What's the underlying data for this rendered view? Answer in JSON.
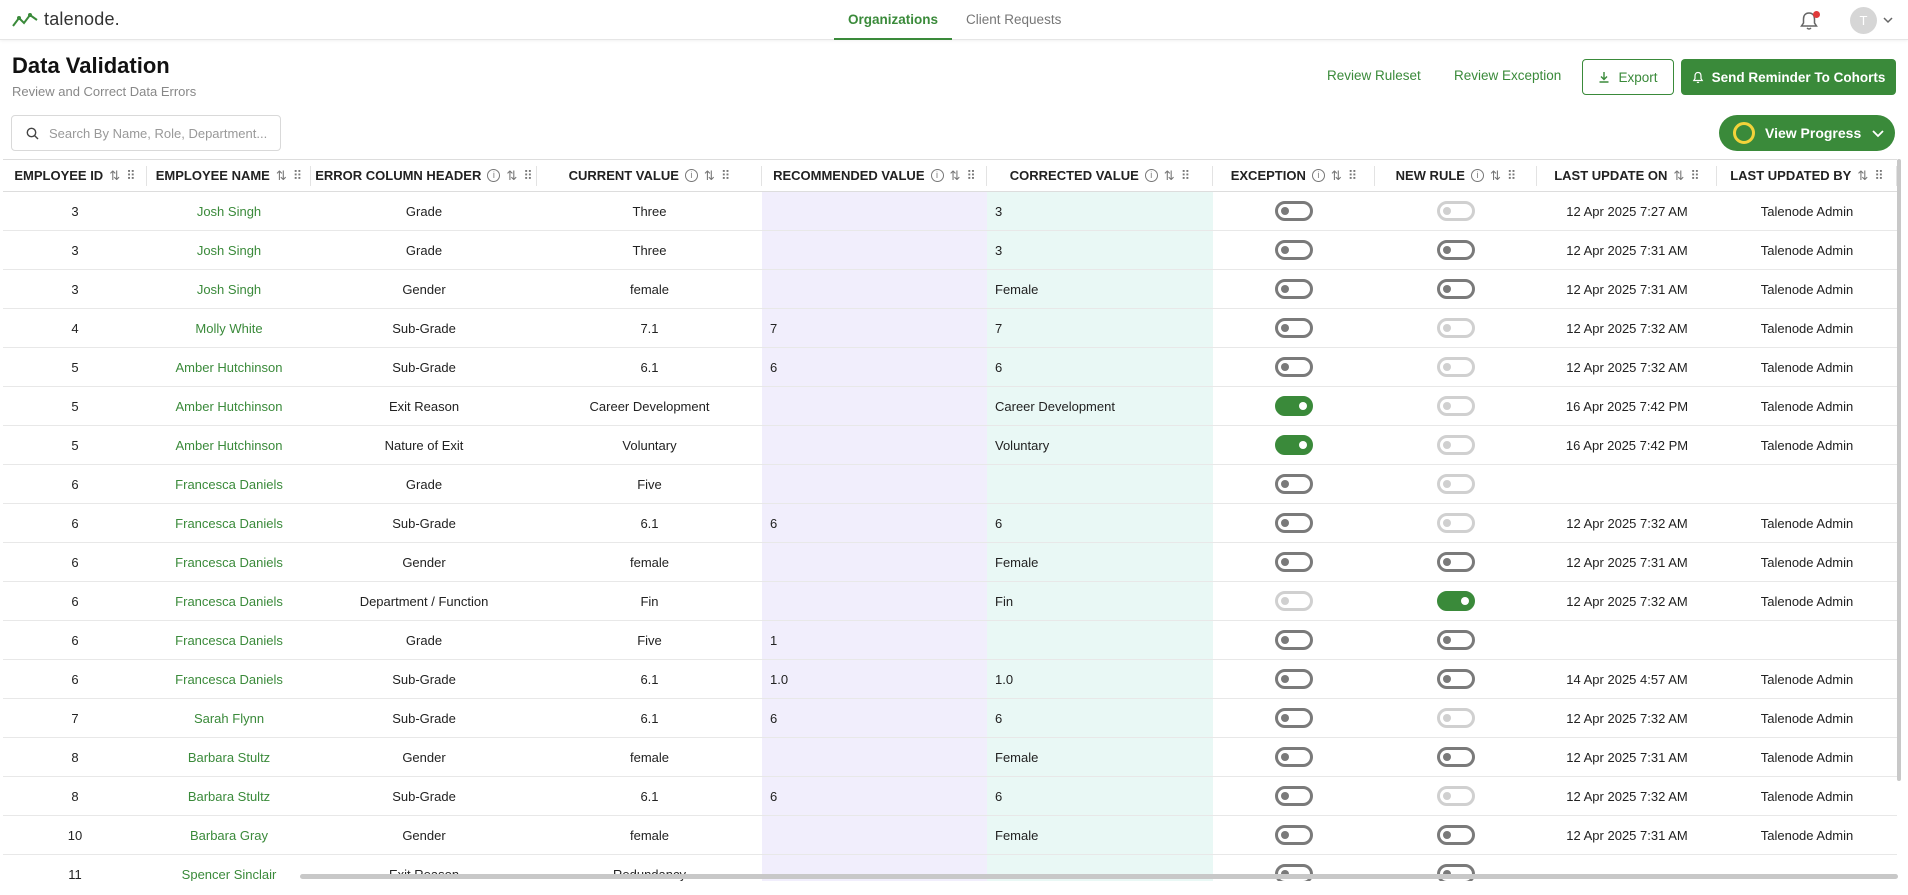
{
  "app": {
    "logo_text": "talenode."
  },
  "nav": {
    "tabs": [
      {
        "label": "Organizations",
        "active": true
      },
      {
        "label": "Client Requests",
        "active": false
      }
    ],
    "avatar_initial": "T"
  },
  "page": {
    "title": "Data Validation",
    "subtitle": "Review and Correct Data Errors"
  },
  "actions": {
    "review_ruleset": "Review Ruleset",
    "review_exception": "Review Exception",
    "export": "Export",
    "send_reminder": "Send Reminder To Cohorts",
    "view_progress": "View Progress"
  },
  "search": {
    "placeholder": "Search By Name, Role, Department..."
  },
  "colors": {
    "accent": "#3a8a3a",
    "recommended_bg": "#f1eefc",
    "corrected_bg": "#e9f8f5",
    "notification": "#e03a3a"
  },
  "table": {
    "columns": [
      {
        "label": "EMPLOYEE ID",
        "info": false
      },
      {
        "label": "EMPLOYEE NAME",
        "info": false
      },
      {
        "label": "ERROR COLUMN HEADER",
        "info": true
      },
      {
        "label": "CURRENT VALUE",
        "info": true
      },
      {
        "label": "RECOMMENDED VALUE",
        "info": true
      },
      {
        "label": "CORRECTED VALUE",
        "info": true
      },
      {
        "label": "EXCEPTION",
        "info": true
      },
      {
        "label": "NEW RULE",
        "info": true
      },
      {
        "label": "LAST UPDATE ON",
        "info": false
      },
      {
        "label": "LAST UPDATED BY",
        "info": false
      }
    ],
    "rows": [
      {
        "id": "3",
        "name": "Josh Singh",
        "header": "Grade",
        "current": "Three",
        "recommended": "",
        "corrected": "3",
        "exception": "off",
        "new_rule": "disabled",
        "updated_on": "12 Apr 2025 7:27 AM",
        "updated_by": "Talenode Admin"
      },
      {
        "id": "3",
        "name": "Josh Singh",
        "header": "Grade",
        "current": "Three",
        "recommended": "",
        "corrected": "3",
        "exception": "off",
        "new_rule": "off",
        "updated_on": "12 Apr 2025 7:31 AM",
        "updated_by": "Talenode Admin"
      },
      {
        "id": "3",
        "name": "Josh Singh",
        "header": "Gender",
        "current": "female",
        "recommended": "",
        "corrected": "Female",
        "exception": "off",
        "new_rule": "off",
        "updated_on": "12 Apr 2025 7:31 AM",
        "updated_by": "Talenode Admin"
      },
      {
        "id": "4",
        "name": "Molly White",
        "header": "Sub-Grade",
        "current": "7.1",
        "recommended": "7",
        "corrected": "7",
        "exception": "off",
        "new_rule": "disabled",
        "updated_on": "12 Apr 2025 7:32 AM",
        "updated_by": "Talenode Admin"
      },
      {
        "id": "5",
        "name": "Amber Hutchinson",
        "header": "Sub-Grade",
        "current": "6.1",
        "recommended": "6",
        "corrected": "6",
        "exception": "off",
        "new_rule": "disabled",
        "updated_on": "12 Apr 2025 7:32 AM",
        "updated_by": "Talenode Admin"
      },
      {
        "id": "5",
        "name": "Amber Hutchinson",
        "header": "Exit Reason",
        "current": "Career Development",
        "recommended": "",
        "corrected": "Career Development",
        "exception": "on",
        "new_rule": "disabled",
        "updated_on": "16 Apr 2025 7:42 PM",
        "updated_by": "Talenode Admin"
      },
      {
        "id": "5",
        "name": "Amber Hutchinson",
        "header": "Nature of Exit",
        "current": "Voluntary",
        "recommended": "",
        "corrected": "Voluntary",
        "exception": "on",
        "new_rule": "disabled",
        "updated_on": "16 Apr 2025 7:42 PM",
        "updated_by": "Talenode Admin"
      },
      {
        "id": "6",
        "name": "Francesca Daniels",
        "header": "Grade",
        "current": "Five",
        "recommended": "",
        "corrected": "",
        "exception": "off",
        "new_rule": "disabled",
        "updated_on": "",
        "updated_by": ""
      },
      {
        "id": "6",
        "name": "Francesca Daniels",
        "header": "Sub-Grade",
        "current": "6.1",
        "recommended": "6",
        "corrected": "6",
        "exception": "off",
        "new_rule": "disabled",
        "updated_on": "12 Apr 2025 7:32 AM",
        "updated_by": "Talenode Admin"
      },
      {
        "id": "6",
        "name": "Francesca Daniels",
        "header": "Gender",
        "current": "female",
        "recommended": "",
        "corrected": "Female",
        "exception": "off",
        "new_rule": "off",
        "updated_on": "12 Apr 2025 7:31 AM",
        "updated_by": "Talenode Admin"
      },
      {
        "id": "6",
        "name": "Francesca Daniels",
        "header": "Department / Function",
        "current": "Fin",
        "recommended": "",
        "corrected": "Fin",
        "exception": "disabled",
        "new_rule": "on",
        "updated_on": "12 Apr 2025 7:32 AM",
        "updated_by": "Talenode Admin"
      },
      {
        "id": "6",
        "name": "Francesca Daniels",
        "header": "Grade",
        "current": "Five",
        "recommended": "1",
        "corrected": "",
        "exception": "off",
        "new_rule": "off",
        "updated_on": "",
        "updated_by": ""
      },
      {
        "id": "6",
        "name": "Francesca Daniels",
        "header": "Sub-Grade",
        "current": "6.1",
        "recommended": "1.0",
        "corrected": "1.0",
        "exception": "off",
        "new_rule": "off",
        "updated_on": "14 Apr 2025 4:57 AM",
        "updated_by": "Talenode Admin"
      },
      {
        "id": "7",
        "name": "Sarah Flynn",
        "header": "Sub-Grade",
        "current": "6.1",
        "recommended": "6",
        "corrected": "6",
        "exception": "off",
        "new_rule": "disabled",
        "updated_on": "12 Apr 2025 7:32 AM",
        "updated_by": "Talenode Admin"
      },
      {
        "id": "8",
        "name": "Barbara Stultz",
        "header": "Gender",
        "current": "female",
        "recommended": "",
        "corrected": "Female",
        "exception": "off",
        "new_rule": "off",
        "updated_on": "12 Apr 2025 7:31 AM",
        "updated_by": "Talenode Admin"
      },
      {
        "id": "8",
        "name": "Barbara Stultz",
        "header": "Sub-Grade",
        "current": "6.1",
        "recommended": "6",
        "corrected": "6",
        "exception": "off",
        "new_rule": "disabled",
        "updated_on": "12 Apr 2025 7:32 AM",
        "updated_by": "Talenode Admin"
      },
      {
        "id": "10",
        "name": "Barbara Gray",
        "header": "Gender",
        "current": "female",
        "recommended": "",
        "corrected": "Female",
        "exception": "off",
        "new_rule": "off",
        "updated_on": "12 Apr 2025 7:31 AM",
        "updated_by": "Talenode Admin"
      },
      {
        "id": "11",
        "name": "Spencer Sinclair",
        "header": "Exit Reason",
        "current": "Redundancy",
        "recommended": "",
        "corrected": "",
        "exception": "off",
        "new_rule": "off",
        "updated_on": "",
        "updated_by": ""
      }
    ]
  }
}
